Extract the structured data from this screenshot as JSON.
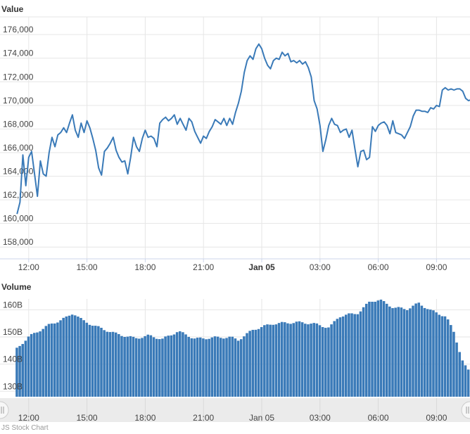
{
  "chart_data": [
    {
      "type": "line",
      "title": "Value",
      "xlabel": "",
      "ylabel": "",
      "x_range_hours": [
        -12.6,
        11.6
      ],
      "x_ticks": [
        {
          "label": "12:00",
          "hour": -12,
          "bold": false
        },
        {
          "label": "15:00",
          "hour": -9,
          "bold": false
        },
        {
          "label": "18:00",
          "hour": -6,
          "bold": false
        },
        {
          "label": "21:00",
          "hour": -3,
          "bold": false
        },
        {
          "label": "Jan 05",
          "hour": 0,
          "bold": true
        },
        {
          "label": "03:00",
          "hour": 3,
          "bold": false
        },
        {
          "label": "06:00",
          "hour": 6,
          "bold": false
        },
        {
          "label": "09:00",
          "hour": 9,
          "bold": false
        }
      ],
      "y_ticks": [
        "158,000",
        "160,000",
        "162,000",
        "164,000",
        "166,000",
        "168,000",
        "170,000",
        "172,000",
        "174,000",
        "176,000"
      ],
      "ylim": [
        157000,
        177500
      ],
      "series": [
        {
          "color": "#3a7ab8",
          "points": [
            [
              -12.6,
              160800
            ],
            [
              -12.45,
              161800
            ],
            [
              -12.3,
              165800
            ],
            [
              -12.15,
              163200
            ],
            [
              -12.0,
              165600
            ],
            [
              -11.85,
              166100
            ],
            [
              -11.7,
              164200
            ],
            [
              -11.55,
              162300
            ],
            [
              -11.4,
              165300
            ],
            [
              -11.25,
              164200
            ],
            [
              -11.1,
              164000
            ],
            [
              -10.95,
              166000
            ],
            [
              -10.8,
              167300
            ],
            [
              -10.65,
              166500
            ],
            [
              -10.5,
              167500
            ],
            [
              -10.35,
              167700
            ],
            [
              -10.2,
              168100
            ],
            [
              -10.05,
              167700
            ],
            [
              -9.9,
              168500
            ],
            [
              -9.75,
              169200
            ],
            [
              -9.6,
              167900
            ],
            [
              -9.45,
              167300
            ],
            [
              -9.3,
              168500
            ],
            [
              -9.15,
              167700
            ],
            [
              -9.0,
              168700
            ],
            [
              -8.85,
              168100
            ],
            [
              -8.7,
              167200
            ],
            [
              -8.55,
              166200
            ],
            [
              -8.4,
              164700
            ],
            [
              -8.25,
              164100
            ],
            [
              -8.1,
              166100
            ],
            [
              -7.95,
              166400
            ],
            [
              -7.8,
              166800
            ],
            [
              -7.65,
              167300
            ],
            [
              -7.5,
              166200
            ],
            [
              -7.35,
              165600
            ],
            [
              -7.2,
              165200
            ],
            [
              -7.05,
              165300
            ],
            [
              -6.9,
              164200
            ],
            [
              -6.75,
              165600
            ],
            [
              -6.6,
              167300
            ],
            [
              -6.45,
              166500
            ],
            [
              -6.3,
              166100
            ],
            [
              -6.15,
              167200
            ],
            [
              -6.0,
              167900
            ],
            [
              -5.85,
              167300
            ],
            [
              -5.7,
              167400
            ],
            [
              -5.55,
              167200
            ],
            [
              -5.4,
              166500
            ],
            [
              -5.25,
              168500
            ],
            [
              -5.1,
              168800
            ],
            [
              -4.95,
              169000
            ],
            [
              -4.8,
              168700
            ],
            [
              -4.65,
              168900
            ],
            [
              -4.5,
              169200
            ],
            [
              -4.35,
              168400
            ],
            [
              -4.2,
              168900
            ],
            [
              -4.05,
              168400
            ],
            [
              -3.9,
              167900
            ],
            [
              -3.75,
              168900
            ],
            [
              -3.6,
              168600
            ],
            [
              -3.45,
              167800
            ],
            [
              -3.3,
              167300
            ],
            [
              -3.15,
              166800
            ],
            [
              -3.0,
              167400
            ],
            [
              -2.85,
              167200
            ],
            [
              -2.7,
              167800
            ],
            [
              -2.55,
              168200
            ],
            [
              -2.4,
              168800
            ],
            [
              -2.25,
              168600
            ],
            [
              -2.1,
              168400
            ],
            [
              -1.95,
              168900
            ],
            [
              -1.8,
              168300
            ],
            [
              -1.65,
              168900
            ],
            [
              -1.5,
              168400
            ],
            [
              -1.35,
              169400
            ],
            [
              -1.2,
              170200
            ],
            [
              -1.05,
              171200
            ],
            [
              -0.9,
              172800
            ],
            [
              -0.75,
              173800
            ],
            [
              -0.6,
              174200
            ],
            [
              -0.45,
              173900
            ],
            [
              -0.3,
              174800
            ],
            [
              -0.15,
              175200
            ],
            [
              0.0,
              174800
            ],
            [
              0.15,
              174000
            ],
            [
              0.3,
              173400
            ],
            [
              0.45,
              173100
            ],
            [
              0.6,
              173800
            ],
            [
              0.75,
              174000
            ],
            [
              0.9,
              173900
            ],
            [
              1.05,
              174500
            ],
            [
              1.2,
              174200
            ],
            [
              1.35,
              174400
            ],
            [
              1.5,
              173700
            ],
            [
              1.65,
              173800
            ],
            [
              1.8,
              173600
            ],
            [
              1.95,
              173800
            ],
            [
              2.1,
              173500
            ],
            [
              2.25,
              173700
            ],
            [
              2.4,
              173200
            ],
            [
              2.55,
              172400
            ],
            [
              2.7,
              170400
            ],
            [
              2.85,
              169700
            ],
            [
              3.0,
              168300
            ],
            [
              3.15,
              166100
            ],
            [
              3.3,
              167100
            ],
            [
              3.45,
              168300
            ],
            [
              3.6,
              168900
            ],
            [
              3.75,
              168400
            ],
            [
              3.9,
              168300
            ],
            [
              4.05,
              167700
            ],
            [
              4.2,
              167900
            ],
            [
              4.35,
              168000
            ],
            [
              4.5,
              167300
            ],
            [
              4.65,
              167900
            ],
            [
              4.8,
              166300
            ],
            [
              4.95,
              164800
            ],
            [
              5.1,
              166100
            ],
            [
              5.25,
              166200
            ],
            [
              5.4,
              165400
            ],
            [
              5.55,
              165600
            ],
            [
              5.7,
              168200
            ],
            [
              5.85,
              167800
            ],
            [
              6.0,
              168300
            ],
            [
              6.15,
              168500
            ],
            [
              6.3,
              168600
            ],
            [
              6.45,
              168300
            ],
            [
              6.6,
              167600
            ],
            [
              6.75,
              168700
            ],
            [
              6.9,
              167700
            ],
            [
              7.05,
              167600
            ],
            [
              7.2,
              167500
            ],
            [
              7.35,
              167200
            ],
            [
              7.5,
              167700
            ],
            [
              7.65,
              168200
            ],
            [
              7.8,
              169100
            ],
            [
              7.95,
              169600
            ],
            [
              8.1,
              169600
            ],
            [
              8.25,
              169500
            ],
            [
              8.4,
              169500
            ],
            [
              8.55,
              169400
            ],
            [
              8.7,
              169800
            ],
            [
              8.85,
              169700
            ],
            [
              9.0,
              170000
            ],
            [
              9.15,
              169900
            ],
            [
              9.3,
              171300
            ],
            [
              9.45,
              171500
            ],
            [
              9.6,
              171300
            ],
            [
              9.75,
              171400
            ],
            [
              9.9,
              171300
            ],
            [
              10.05,
              171400
            ],
            [
              10.2,
              171400
            ],
            [
              10.35,
              171200
            ],
            [
              10.5,
              170600
            ],
            [
              10.65,
              170400
            ],
            [
              10.8,
              170500
            ],
            [
              10.95,
              170700
            ],
            [
              11.1,
              171200
            ],
            [
              11.25,
              170800
            ],
            [
              11.35,
              169900
            ],
            [
              11.45,
              170400
            ]
          ]
        }
      ]
    },
    {
      "type": "bar",
      "title": "Volume",
      "xlabel": "",
      "ylabel": "",
      "x_range_hours": [
        -12.6,
        11.6
      ],
      "y_ticks": [
        "130B",
        "140B",
        "150B",
        "160B"
      ],
      "ylim": [
        128000000000,
        164000000000
      ],
      "bar_color": "#3a7ab8",
      "bar_step_hours": 0.15,
      "volume_profile": [
        [
          -12.6,
          145700000000
        ],
        [
          -12.0,
          150000000000
        ],
        [
          -11.0,
          154200000000
        ],
        [
          -10.0,
          157300000000
        ],
        [
          -9.7,
          158900000000
        ],
        [
          -9.2,
          156000000000
        ],
        [
          -8.5,
          153800000000
        ],
        [
          -7.5,
          151200000000
        ],
        [
          -6.5,
          149500000000
        ],
        [
          -5.8,
          150500000000
        ],
        [
          -5.1,
          149200000000
        ],
        [
          -4.3,
          152100000000
        ],
        [
          -3.4,
          149300000000
        ],
        [
          -2.4,
          149800000000
        ],
        [
          -1.6,
          149900000000
        ],
        [
          -1.2,
          148900000000
        ],
        [
          -0.4,
          152800000000
        ],
        [
          0.6,
          154900000000
        ],
        [
          1.8,
          155400000000
        ],
        [
          2.6,
          155000000000
        ],
        [
          3.5,
          153400000000
        ],
        [
          4.0,
          157600000000
        ],
        [
          5.0,
          158900000000
        ],
        [
          5.6,
          163200000000
        ],
        [
          6.1,
          163600000000
        ],
        [
          6.8,
          160800000000
        ],
        [
          7.5,
          160300000000
        ],
        [
          8.1,
          162400000000
        ],
        [
          8.7,
          159800000000
        ],
        [
          9.5,
          157500000000
        ],
        [
          9.9,
          151900000000
        ],
        [
          10.4,
          140100000000
        ],
        [
          11.0,
          134300000000
        ],
        [
          11.45,
          131500000000
        ]
      ]
    }
  ],
  "navigator": {
    "tick_labels": [
      "12:00",
      "15:00",
      "18:00",
      "21:00",
      "Jan 05",
      "03:00",
      "06:00",
      "09:00"
    ],
    "credit_text": "JS Stock Chart"
  }
}
